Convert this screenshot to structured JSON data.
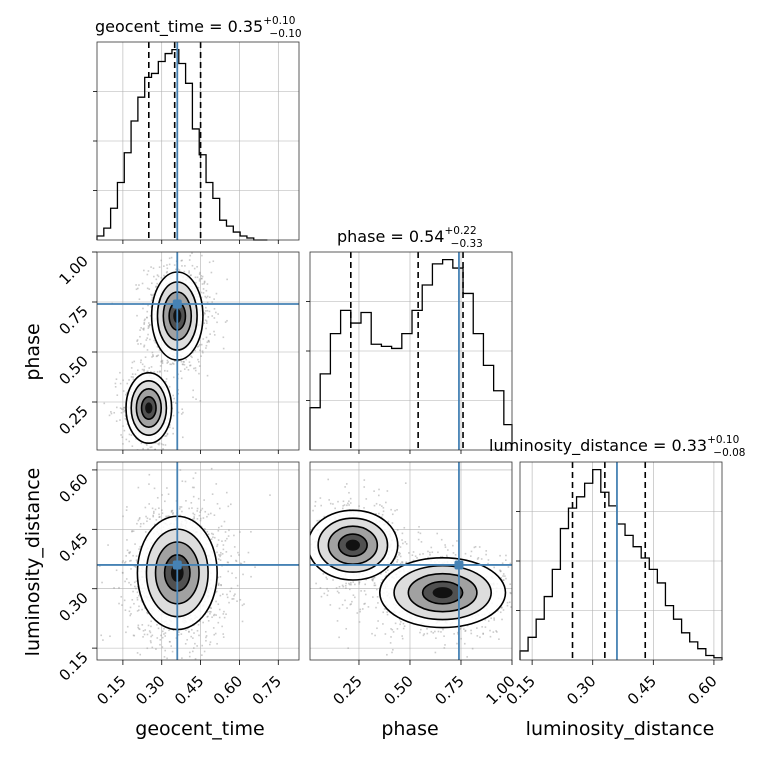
{
  "chart_data": {
    "type": "corner",
    "parameters": [
      "geocent_time",
      "phase",
      "luminosity_distance"
    ],
    "truths": {
      "geocent_time": 0.36,
      "phase": 0.74,
      "luminosity_distance": 0.36
    },
    "axis_ranges": {
      "geocent_time": [
        0.05,
        0.83
      ],
      "phase": [
        0.01,
        1.0
      ],
      "luminosity_distance": [
        0.12,
        0.62
      ]
    },
    "ticks": {
      "geocent_time": [
        "0.15",
        "0.30",
        "0.45",
        "0.60",
        "0.75"
      ],
      "phase": [
        "0.25",
        "0.50",
        "0.75",
        "1.00"
      ],
      "phase_y": [
        "0.25",
        "0.50",
        "0.75",
        "1.00"
      ],
      "luminosity_distance": [
        "0.15",
        "0.30",
        "0.45",
        "0.60"
      ],
      "luminosity_distance_y": [
        "0.15",
        "0.30",
        "0.45",
        "0.60"
      ]
    },
    "grid": true,
    "marginals": [
      {
        "name": "geocent_time",
        "title": {
          "text": "geocent_time = 0.35",
          "sup": "+0.10",
          "sub": "−0.10"
        },
        "quantiles": [
          0.25,
          0.35,
          0.45
        ],
        "bin_edges": [
          0.05,
          0.0763,
          0.1026,
          0.1289,
          0.1553,
          0.1816,
          0.2079,
          0.2342,
          0.2605,
          0.2868,
          0.3132,
          0.3395,
          0.3658,
          0.3921,
          0.4184,
          0.4447,
          0.4711,
          0.4974,
          0.5237,
          0.55,
          0.5763,
          0.6026,
          0.6289,
          0.6553,
          0.6816,
          0.7079
        ],
        "counts": [
          2,
          6,
          16,
          29,
          44,
          60,
          72,
          82,
          84,
          90,
          94,
          96,
          89,
          79,
          56,
          43,
          29,
          21,
          10,
          7,
          4,
          2,
          1,
          0,
          0
        ]
      },
      {
        "name": "phase",
        "title": {
          "text": "phase = 0.54",
          "sup": "+0.22",
          "sub": "−0.33"
        },
        "quantiles": [
          0.21,
          0.54,
          0.76
        ],
        "bin_edges": [
          0.01,
          0.06,
          0.11,
          0.16,
          0.21,
          0.26,
          0.31,
          0.36,
          0.41,
          0.46,
          0.51,
          0.56,
          0.61,
          0.66,
          0.71,
          0.76,
          0.81,
          0.86,
          0.91,
          0.96,
          1.0
        ],
        "counts": [
          20,
          36,
          55,
          66,
          60,
          65,
          50,
          49,
          48,
          55,
          66,
          78,
          88,
          90,
          86,
          74,
          55,
          40,
          28,
          12
        ]
      },
      {
        "name": "luminosity_distance",
        "title": {
          "text": "luminosity_distance = 0.33",
          "sup": "+0.10",
          "sub": "−0.08"
        },
        "quantiles": [
          0.25,
          0.33,
          0.43
        ],
        "bin_edges": [
          0.12,
          0.14,
          0.16,
          0.18,
          0.2,
          0.22,
          0.24,
          0.26,
          0.28,
          0.3,
          0.32,
          0.34,
          0.36,
          0.38,
          0.4,
          0.42,
          0.44,
          0.46,
          0.48,
          0.5,
          0.52,
          0.54,
          0.56,
          0.58,
          0.6,
          0.62
        ],
        "counts": [
          4,
          10,
          18,
          28,
          40,
          58,
          67,
          72,
          78,
          84,
          74,
          68,
          60,
          55,
          50,
          45,
          40,
          34,
          24,
          18,
          12,
          8,
          5,
          2,
          1
        ]
      }
    ],
    "scatter_panels": [
      {
        "x": "geocent_time",
        "y": "phase",
        "modes": [
          {
            "x": 0.36,
            "y": 0.68,
            "sx": 0.045,
            "sy": 0.1,
            "w": 0.65
          },
          {
            "x": 0.25,
            "y": 0.22,
            "sx": 0.04,
            "sy": 0.08,
            "w": 0.35
          }
        ]
      },
      {
        "x": "geocent_time",
        "y": "luminosity_distance",
        "modes": [
          {
            "x": 0.36,
            "y": 0.34,
            "sx": 0.07,
            "sy": 0.065,
            "w": 1.0
          }
        ]
      },
      {
        "x": "phase",
        "y": "luminosity_distance",
        "modes": [
          {
            "x": 0.22,
            "y": 0.41,
            "sx": 0.1,
            "sy": 0.04,
            "w": 0.4
          },
          {
            "x": 0.66,
            "y": 0.29,
            "sx": 0.14,
            "sy": 0.04,
            "w": 0.6
          }
        ]
      }
    ],
    "colors": {
      "truth": "#4682b4",
      "histogram": "#000000",
      "points": "#9a9a9a",
      "grid": "#b0b0b0"
    }
  }
}
